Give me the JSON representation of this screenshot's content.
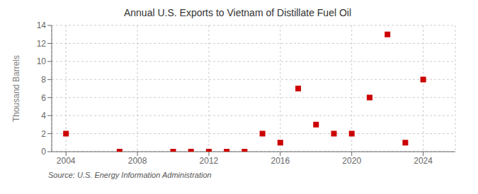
{
  "chart_data": {
    "type": "scatter",
    "title": "Annual U.S. Exports to Vietnam of Distillate Fuel Oil",
    "ylabel": "Thousand Barrels",
    "annotations": [
      "Source: U.S. Energy Information Administration"
    ],
    "x": [
      2004,
      2007,
      2010,
      2011,
      2012,
      2013,
      2014,
      2015,
      2016,
      2017,
      2018,
      2019,
      2020,
      2021,
      2022,
      2023,
      2024
    ],
    "values": [
      2,
      0,
      0,
      0,
      0,
      0,
      0,
      2,
      1,
      7,
      3,
      2,
      2,
      6,
      13,
      1,
      8
    ],
    "color": "#cc0000",
    "marker": "square",
    "xlim": [
      2003.2,
      2025.8
    ],
    "ylim": [
      0,
      14
    ],
    "xticks": [
      2004,
      2008,
      2012,
      2016,
      2020,
      2024
    ],
    "yticks": [
      0,
      2,
      4,
      6,
      8,
      10,
      12,
      14
    ],
    "grid": true
  }
}
